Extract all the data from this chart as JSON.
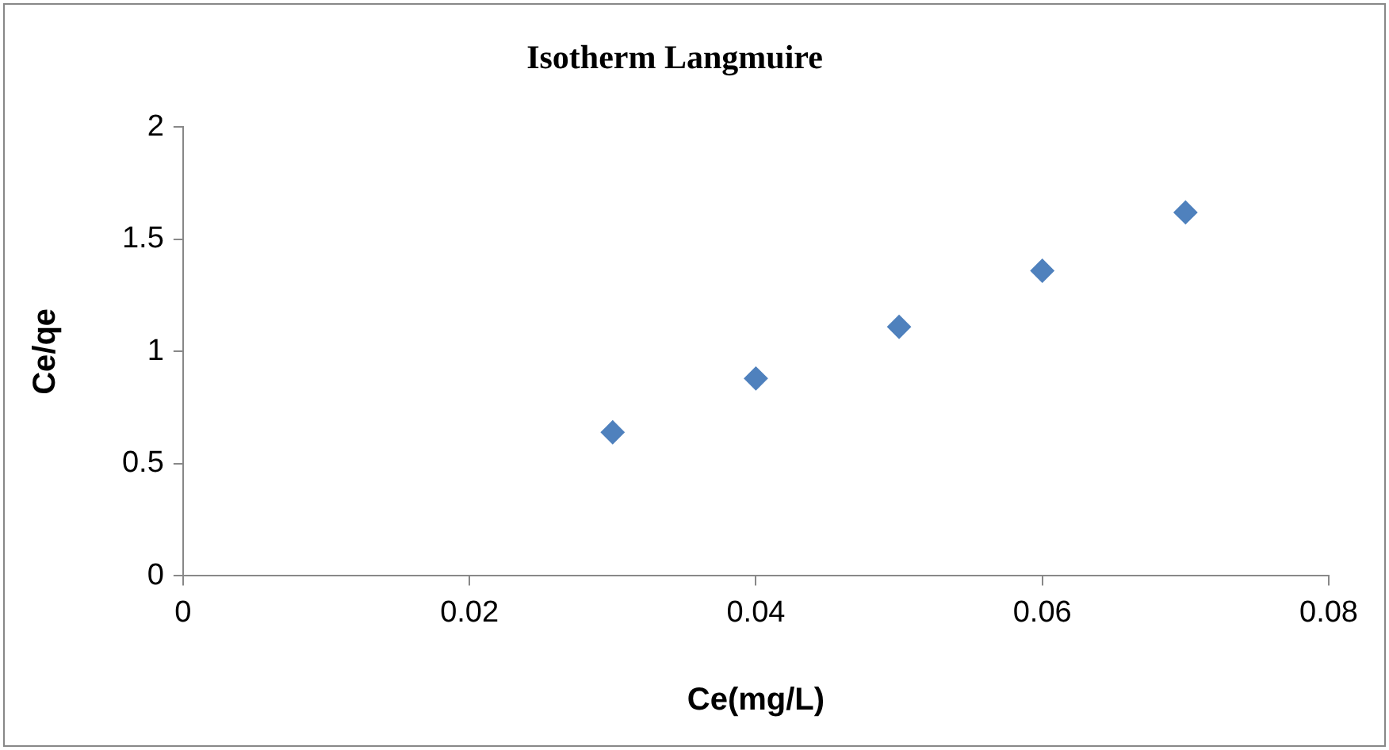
{
  "chart_data": {
    "type": "scatter",
    "title": "Isotherm Langmuire",
    "xlabel": "Ce(mg/L)",
    "ylabel": "Ce/qe",
    "x": [
      0.03,
      0.04,
      0.05,
      0.06,
      0.07
    ],
    "series": [
      {
        "color": "#4f81bd",
        "values": [
          0.64,
          0.88,
          1.11,
          1.36,
          1.62
        ]
      }
    ],
    "xlim": [
      0,
      0.08
    ],
    "xticks": [
      0,
      0.02,
      0.04,
      0.06,
      0.08
    ],
    "ylim": [
      0,
      2
    ],
    "yticks": [
      0,
      0.5,
      1,
      1.5,
      2
    ],
    "grid": false,
    "legend": false,
    "marker": "diamond"
  }
}
